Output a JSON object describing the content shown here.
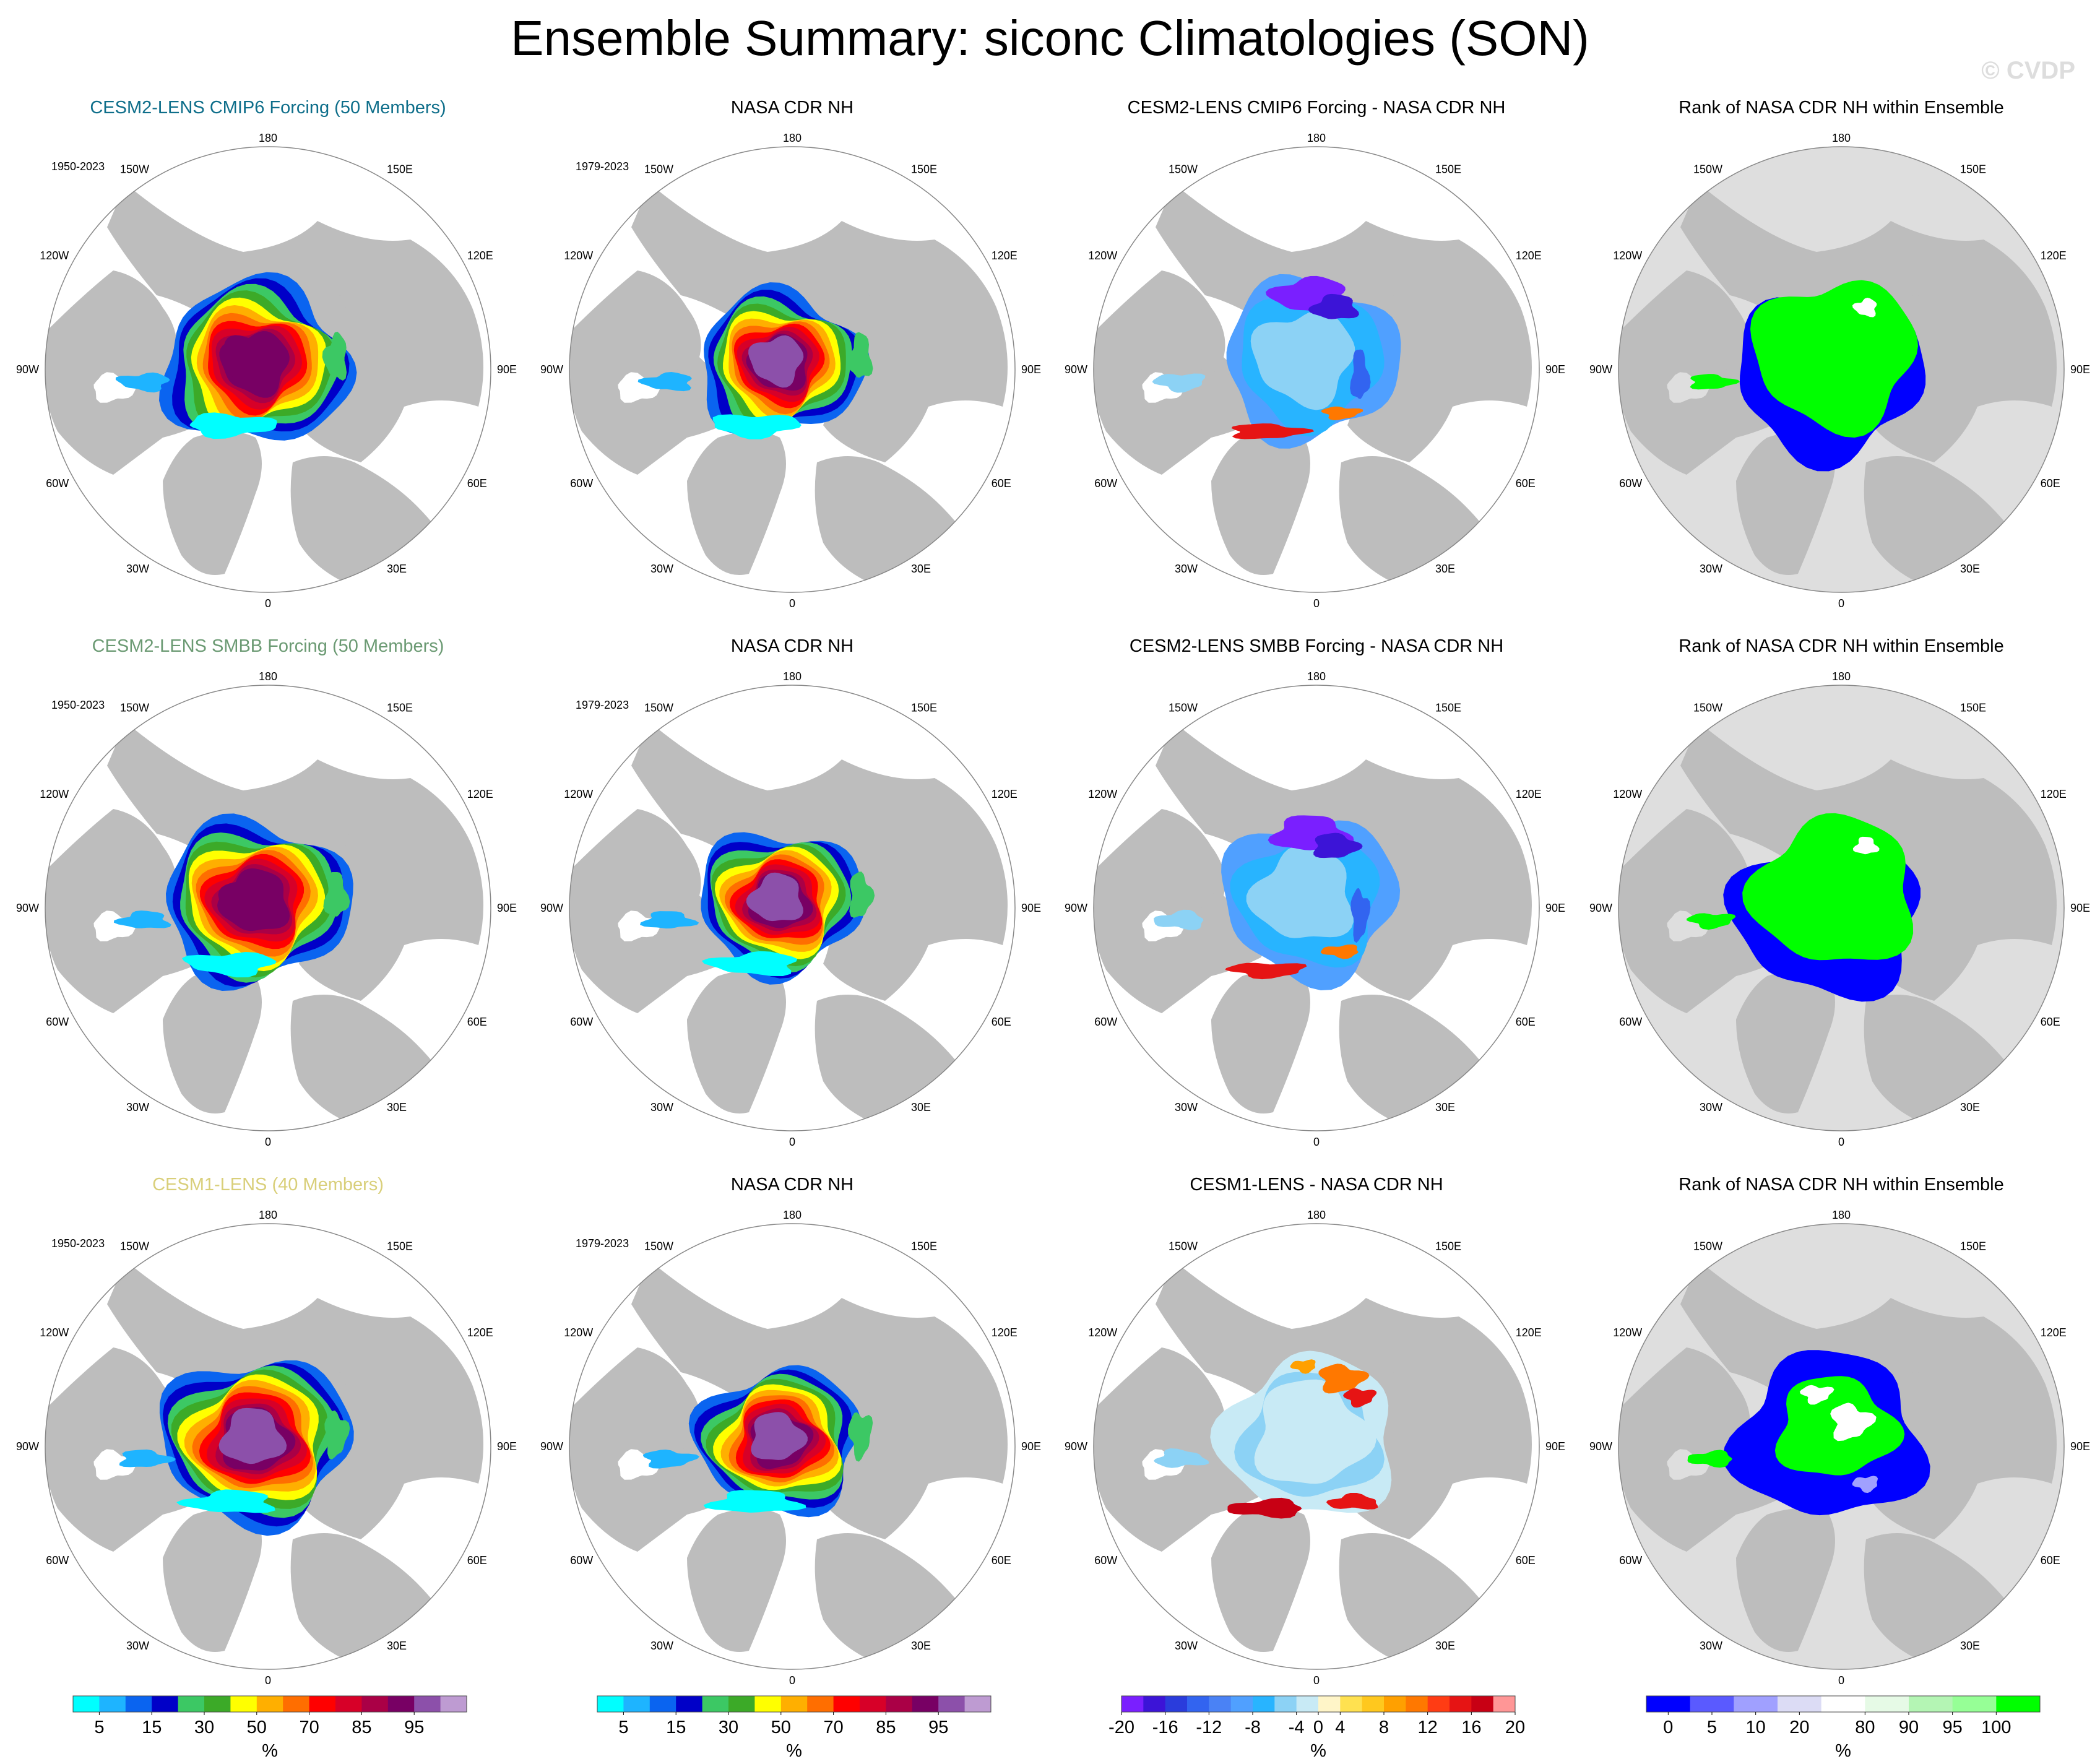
{
  "title": "Ensemble Summary: siconc Climatologies (SON)",
  "watermark": "© CVDP",
  "colors": {
    "land": "#bdbdbd",
    "ocean": "#ffffff",
    "rank_background": "#dedede",
    "row_titles": [
      "#0e6e8a",
      "#6b9a73",
      "#d9cf7a"
    ]
  },
  "map_labels": {
    "top": "180",
    "bottom": "0",
    "upper_left": "150W",
    "upper_right": "150E",
    "left_upper": "120W",
    "right_upper": "120E",
    "left": "90W",
    "right": "90E",
    "left_lower": "60W",
    "right_lower": "60E",
    "lower_left": "30W",
    "lower_right": "30E"
  },
  "panels": [
    [
      {
        "title": "CESM2-LENS CMIP6 Forcing (50 Members)",
        "title_color": "#0e6e8a",
        "years": "1950-2023",
        "kind": "conc"
      },
      {
        "title": "NASA CDR NH",
        "title_color": "#000000",
        "years": "1979-2023",
        "kind": "obs"
      },
      {
        "title": "CESM2-LENS CMIP6 Forcing - NASA CDR NH",
        "title_color": "#000000",
        "years": "",
        "kind": "diff"
      },
      {
        "title": "Rank of NASA CDR NH within Ensemble",
        "title_color": "#000000",
        "years": "",
        "kind": "rank"
      }
    ],
    [
      {
        "title": "CESM2-LENS SMBB Forcing (50 Members)",
        "title_color": "#6b9a73",
        "years": "1950-2023",
        "kind": "conc"
      },
      {
        "title": "NASA CDR NH",
        "title_color": "#000000",
        "years": "1979-2023",
        "kind": "obs"
      },
      {
        "title": "CESM2-LENS SMBB Forcing - NASA CDR NH",
        "title_color": "#000000",
        "years": "",
        "kind": "diff"
      },
      {
        "title": "Rank of NASA CDR NH within Ensemble",
        "title_color": "#000000",
        "years": "",
        "kind": "rank"
      }
    ],
    [
      {
        "title": "CESM1-LENS (40 Members)",
        "title_color": "#d9cf7a",
        "years": "1950-2023",
        "kind": "conc"
      },
      {
        "title": "NASA CDR NH",
        "title_color": "#000000",
        "years": "1979-2023",
        "kind": "obs"
      },
      {
        "title": "CESM1-LENS - NASA CDR NH",
        "title_color": "#000000",
        "years": "",
        "kind": "diff3"
      },
      {
        "title": "Rank of NASA CDR NH within Ensemble",
        "title_color": "#000000",
        "years": "",
        "kind": "rank3"
      }
    ]
  ],
  "colorbars": [
    {
      "unit": "%",
      "colors": [
        "#00ffff",
        "#1eb4ff",
        "#0a64f0",
        "#0000c8",
        "#3cc864",
        "#3caa28",
        "#ffff00",
        "#ffaf00",
        "#ff6e00",
        "#ff0000",
        "#d70028",
        "#aa0046",
        "#780064",
        "#8c50aa",
        "#be9bd2"
      ],
      "labels": [
        "5",
        "15",
        "30",
        "50",
        "70",
        "85",
        "95"
      ],
      "label_boundaries": [
        1,
        3,
        5,
        7,
        9,
        11,
        13
      ]
    },
    {
      "unit": "%",
      "colors": [
        "#00ffff",
        "#1eb4ff",
        "#0a64f0",
        "#0000c8",
        "#3cc864",
        "#3caa28",
        "#ffff00",
        "#ffaf00",
        "#ff6e00",
        "#ff0000",
        "#d70028",
        "#aa0046",
        "#780064",
        "#8c50aa",
        "#be9bd2"
      ],
      "labels": [
        "5",
        "15",
        "30",
        "50",
        "70",
        "85",
        "95"
      ],
      "label_boundaries": [
        1,
        3,
        5,
        7,
        9,
        11,
        13
      ]
    },
    {
      "unit": "%",
      "colors": [
        "#7a1fff",
        "#3c14d7",
        "#2a3cdc",
        "#3264f0",
        "#4a82f5",
        "#50a0ff",
        "#28b4ff",
        "#8cd2f5",
        "#c8eaf5",
        "#fff5c8",
        "#ffe150",
        "#ffc81e",
        "#ffa000",
        "#ff7800",
        "#ff3c14",
        "#e61414",
        "#c80014",
        "#ff9696"
      ],
      "labels": [
        "-20",
        "-16",
        "-12",
        "-8",
        "-4",
        "0",
        "4",
        "8",
        "12",
        "16",
        "20"
      ],
      "label_boundaries": [
        0,
        2,
        4,
        6,
        8,
        9,
        10,
        12,
        14,
        16,
        18
      ]
    },
    {
      "unit": "%",
      "colors": [
        "#0000ff",
        "#5a5aff",
        "#a0a0ff",
        "#dcdcf5",
        "#ffffff",
        "#e6fae6",
        "#b4f5b4",
        "#96ff96",
        "#00ff00"
      ],
      "labels": [
        "0",
        "5",
        "10",
        "20",
        "80",
        "90",
        "95",
        "100"
      ],
      "label_boundaries": [
        0.5,
        1.5,
        2.5,
        3.5,
        5,
        6,
        7,
        8
      ]
    }
  ]
}
